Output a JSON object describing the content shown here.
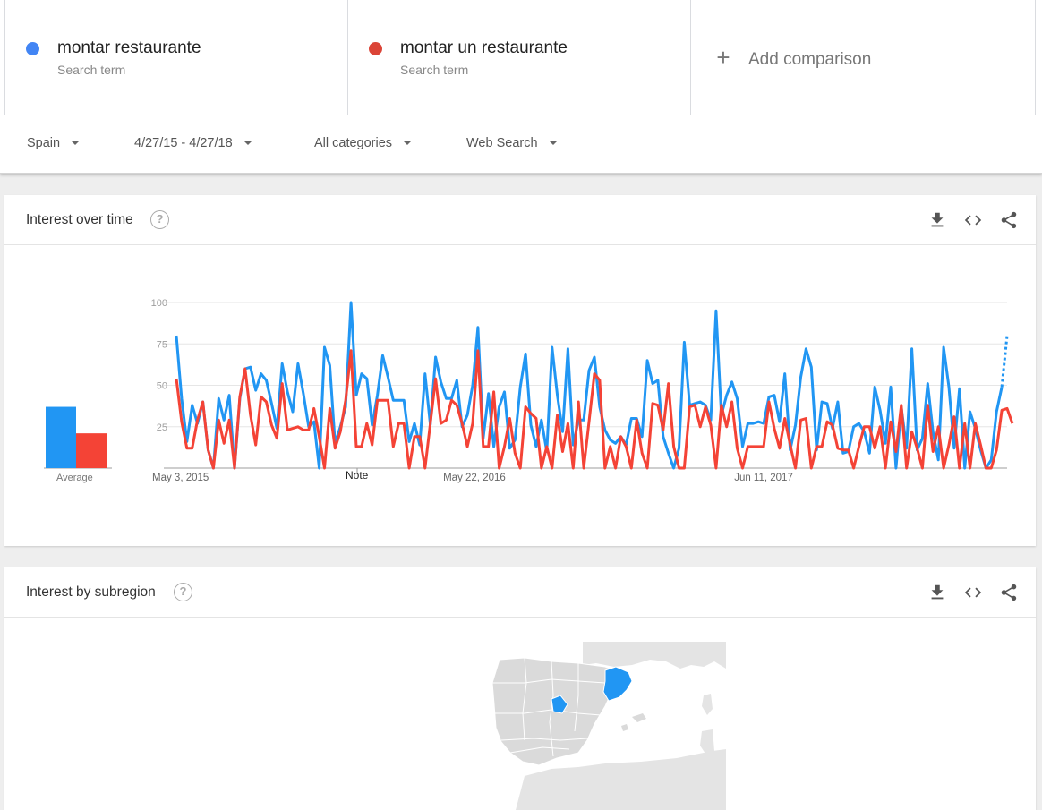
{
  "compare": {
    "terms": [
      {
        "name": "montar restaurante",
        "subtitle": "Search term",
        "color": "#4285f4"
      },
      {
        "name": "montar un restaurante",
        "subtitle": "Search term",
        "color": "#db4437"
      }
    ],
    "add_label": "Add comparison"
  },
  "filters": {
    "region": "Spain",
    "date_range": "4/27/15 - 4/27/18",
    "category": "All categories",
    "search_type": "Web Search"
  },
  "interest_over_time": {
    "title": "Interest over time",
    "note_label": "Note",
    "average_label": "Average"
  },
  "interest_by_subregion": {
    "title": "Interest by subregion"
  },
  "chart_data": {
    "type": "line",
    "ylim": [
      0,
      100
    ],
    "yticks": [
      25,
      50,
      75,
      100
    ],
    "xtick_labels": [
      "May 3, 2015",
      "May 22, 2016",
      "Jun 11, 2017"
    ],
    "grid": true,
    "series": [
      {
        "name": "montar restaurante",
        "color": "#2196f3",
        "average": 37,
        "values": [
          80,
          42,
          16,
          38,
          27,
          40,
          11,
          0,
          42,
          29,
          44,
          0,
          42,
          60,
          61,
          47,
          57,
          53,
          39,
          24,
          63,
          46,
          34,
          63,
          45,
          25,
          28,
          0,
          73,
          62,
          15,
          25,
          37,
          100,
          44,
          57,
          54,
          26,
          44,
          68,
          55,
          41,
          41,
          41,
          16,
          27,
          14,
          57,
          26,
          67,
          52,
          42,
          42,
          53,
          25,
          32,
          50,
          85,
          18,
          45,
          13,
          37,
          46,
          12,
          17,
          49,
          69,
          26,
          13,
          29,
          10,
          73,
          44,
          22,
          72,
          14,
          29,
          29,
          59,
          67,
          37,
          23,
          17,
          15,
          19,
          14,
          30,
          30,
          19,
          65,
          51,
          53,
          19,
          9,
          0,
          12,
          76,
          38,
          39,
          40,
          38,
          29,
          95,
          32,
          44,
          52,
          42,
          13,
          27,
          27,
          28,
          27,
          43,
          44,
          28,
          57,
          11,
          26,
          55,
          72,
          61,
          11,
          40,
          39,
          24,
          40,
          9,
          10,
          25,
          27,
          22,
          9,
          49,
          35,
          15,
          49,
          0,
          37,
          12,
          72,
          11,
          18,
          51,
          22,
          5,
          73,
          49,
          12,
          48,
          0,
          34,
          24,
          11,
          0,
          5,
          34,
          49,
          80
        ],
        "dashed_tail_from": 156
      },
      {
        "name": "montar un restaurante",
        "color": "#f44336",
        "average": 21,
        "values": [
          54,
          28,
          12,
          12,
          29,
          40,
          11,
          0,
          29,
          15,
          29,
          0,
          43,
          60,
          32,
          14,
          43,
          40,
          26,
          18,
          51,
          23,
          24,
          25,
          23,
          23,
          36,
          19,
          0,
          36,
          12,
          22,
          41,
          71,
          13,
          13,
          27,
          14,
          41,
          41,
          41,
          13,
          27,
          27,
          0,
          19,
          19,
          0,
          27,
          54,
          27,
          29,
          41,
          38,
          27,
          13,
          27,
          71,
          13,
          13,
          46,
          0,
          13,
          30,
          9,
          0,
          37,
          33,
          30,
          0,
          13,
          0,
          32,
          10,
          27,
          0,
          40,
          0,
          28,
          57,
          53,
          0,
          13,
          0,
          19,
          13,
          0,
          29,
          9,
          0,
          39,
          38,
          23,
          51,
          13,
          0,
          0,
          37,
          38,
          25,
          37,
          26,
          0,
          38,
          25,
          40,
          12,
          0,
          13,
          13,
          13,
          13,
          40,
          24,
          12,
          30,
          14,
          0,
          29,
          30,
          0,
          13,
          13,
          28,
          26,
          12,
          11,
          11,
          0,
          13,
          25,
          25,
          12,
          25,
          0,
          28,
          10,
          38,
          0,
          22,
          12,
          0,
          38,
          10,
          25,
          0,
          14,
          31,
          0,
          27,
          0,
          27,
          14,
          0,
          0,
          11,
          35,
          36,
          27
        ]
      }
    ]
  }
}
